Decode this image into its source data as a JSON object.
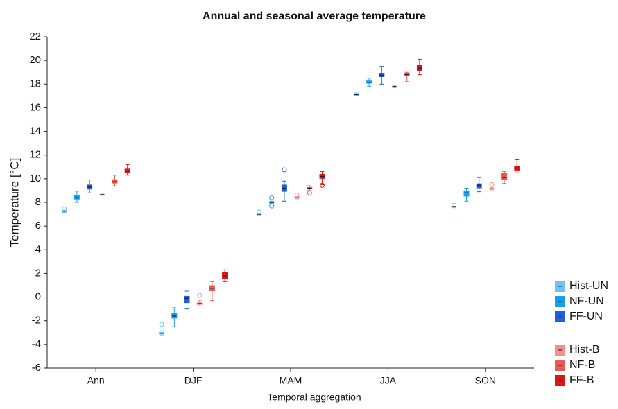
{
  "chart_data": {
    "type": "box",
    "title": "Annual and seasonal average temperature",
    "x_label": "Temporal aggregation",
    "y_label": "Temperature [°C]",
    "categories": [
      "Ann",
      "DJF",
      "MAM",
      "JJA",
      "SON"
    ],
    "ylim": [
      -6,
      22
    ],
    "yticks": [
      -6,
      -4,
      -2,
      0,
      2,
      4,
      6,
      8,
      10,
      12,
      14,
      16,
      18,
      20,
      22
    ],
    "series": [
      {
        "name": "Hist-UN",
        "color": "#6ec3f2",
        "boxes": [
          {
            "min": 7.15,
            "q1": 7.2,
            "median": 7.25,
            "q3": 7.3,
            "max": 7.35,
            "outliers": [
              7.45
            ]
          },
          {
            "min": -3.2,
            "q1": -3.15,
            "median": -3.05,
            "q3": -2.95,
            "max": -2.85,
            "outliers": [
              -2.3
            ]
          },
          {
            "min": 6.9,
            "q1": 6.95,
            "median": 7.0,
            "q3": 7.05,
            "max": 7.1,
            "outliers": [
              7.2
            ]
          },
          {
            "min": 17.0,
            "q1": 17.05,
            "median": 17.1,
            "q3": 17.15,
            "max": 17.25,
            "outliers": []
          },
          {
            "min": 7.55,
            "q1": 7.6,
            "median": 7.65,
            "q3": 7.7,
            "max": 7.9,
            "outliers": []
          }
        ]
      },
      {
        "name": "NF-UN",
        "color": "#1a9ee8",
        "boxes": [
          {
            "min": 8.0,
            "q1": 8.25,
            "median": 8.4,
            "q3": 8.6,
            "max": 8.95,
            "outliers": []
          },
          {
            "min": -2.5,
            "q1": -1.8,
            "median": -1.6,
            "q3": -1.35,
            "max": -0.9,
            "outliers": []
          },
          {
            "min": 7.9,
            "q1": 7.95,
            "median": 8.0,
            "q3": 8.05,
            "max": 8.1,
            "outliers": [
              8.4,
              7.7
            ]
          },
          {
            "min": 17.8,
            "q1": 18.05,
            "median": 18.15,
            "q3": 18.3,
            "max": 18.5,
            "outliers": []
          },
          {
            "min": 8.1,
            "q1": 8.5,
            "median": 8.8,
            "q3": 9.0,
            "max": 9.2,
            "outliers": []
          }
        ]
      },
      {
        "name": "FF-UN",
        "color": "#1f5fdc",
        "boxes": [
          {
            "min": 8.8,
            "q1": 9.1,
            "median": 9.3,
            "q3": 9.5,
            "max": 9.9,
            "outliers": []
          },
          {
            "min": -1.0,
            "q1": -0.5,
            "median": -0.1,
            "q3": 0.1,
            "max": 0.5,
            "outliers": []
          },
          {
            "min": 8.1,
            "q1": 8.9,
            "median": 9.2,
            "q3": 9.5,
            "max": 9.8,
            "outliers": [
              10.75
            ]
          },
          {
            "min": 18.0,
            "q1": 18.6,
            "median": 18.75,
            "q3": 18.95,
            "max": 19.5,
            "outliers": []
          },
          {
            "min": 8.9,
            "q1": 9.2,
            "median": 9.45,
            "q3": 9.6,
            "max": 10.1,
            "outliers": []
          }
        ]
      },
      {
        "name": "Hist-B",
        "color": "#f4908c",
        "boxes": [
          {
            "min": 8.6,
            "q1": 8.62,
            "median": 8.65,
            "q3": 8.68,
            "max": 8.7,
            "outliers": []
          },
          {
            "min": -0.75,
            "q1": -0.65,
            "median": -0.55,
            "q3": -0.45,
            "max": -0.3,
            "outliers": [
              0.15
            ]
          },
          {
            "min": 8.3,
            "q1": 8.35,
            "median": 8.4,
            "q3": 8.45,
            "max": 8.5,
            "outliers": [
              8.6
            ]
          },
          {
            "min": 17.7,
            "q1": 17.75,
            "median": 17.8,
            "q3": 17.82,
            "max": 17.85,
            "outliers": []
          },
          {
            "min": 9.05,
            "q1": 9.1,
            "median": 9.15,
            "q3": 9.2,
            "max": 9.25,
            "outliers": [
              9.5
            ]
          }
        ]
      },
      {
        "name": "NF-B",
        "color": "#e85a55",
        "boxes": [
          {
            "min": 9.4,
            "q1": 9.6,
            "median": 9.75,
            "q3": 9.95,
            "max": 10.3,
            "outliers": []
          },
          {
            "min": -0.3,
            "q1": 0.5,
            "median": 0.75,
            "q3": 1.0,
            "max": 1.3,
            "outliers": []
          },
          {
            "min": 9.0,
            "q1": 9.1,
            "median": 9.2,
            "q3": 9.3,
            "max": 9.4,
            "outliers": [
              8.8
            ]
          },
          {
            "min": 18.2,
            "q1": 18.7,
            "median": 18.8,
            "q3": 18.9,
            "max": 19.0,
            "outliers": []
          },
          {
            "min": 9.6,
            "q1": 9.9,
            "median": 10.1,
            "q3": 10.5,
            "max": 10.6,
            "outliers": []
          }
        ]
      },
      {
        "name": "FF-B",
        "color": "#e01414",
        "boxes": [
          {
            "min": 10.3,
            "q1": 10.5,
            "median": 10.65,
            "q3": 10.85,
            "max": 11.2,
            "outliers": []
          },
          {
            "min": 1.3,
            "q1": 1.5,
            "median": 1.8,
            "q3": 2.1,
            "max": 2.3,
            "outliers": []
          },
          {
            "min": 9.5,
            "q1": 10.0,
            "median": 10.2,
            "q3": 10.4,
            "max": 10.6,
            "outliers": [
              9.45
            ]
          },
          {
            "min": 18.8,
            "q1": 19.1,
            "median": 19.35,
            "q3": 19.6,
            "max": 20.1,
            "outliers": []
          },
          {
            "min": 10.5,
            "q1": 10.7,
            "median": 10.9,
            "q3": 11.1,
            "max": 11.6,
            "outliers": []
          }
        ]
      }
    ]
  }
}
